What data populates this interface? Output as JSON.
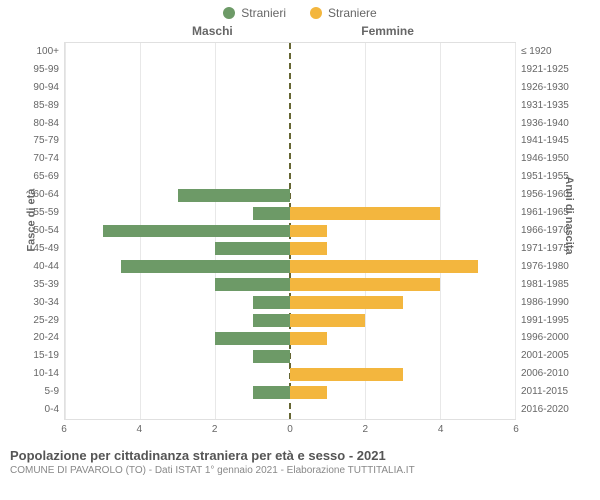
{
  "legend": {
    "male": {
      "label": "Stranieri",
      "color": "#6d9a67"
    },
    "female": {
      "label": "Straniere",
      "color": "#f3b63e"
    }
  },
  "headers": {
    "male_col": "Maschi",
    "female_col": "Femmine"
  },
  "axis_titles": {
    "left": "Fasce di età",
    "right": "Anni di nascita"
  },
  "chart": {
    "xlim": 6,
    "xticks": [
      6,
      4,
      2,
      0,
      2,
      4,
      6
    ],
    "grid_color": "#e8e8e8",
    "center_dash_color": "#666633",
    "background": "#ffffff",
    "rows": [
      {
        "age": "0-4",
        "birth": "2016-2020",
        "male": 0,
        "female": 0
      },
      {
        "age": "5-9",
        "birth": "2011-2015",
        "male": 1,
        "female": 1
      },
      {
        "age": "10-14",
        "birth": "2006-2010",
        "male": 0,
        "female": 3
      },
      {
        "age": "15-19",
        "birth": "2001-2005",
        "male": 1,
        "female": 0
      },
      {
        "age": "20-24",
        "birth": "1996-2000",
        "male": 2,
        "female": 1
      },
      {
        "age": "25-29",
        "birth": "1991-1995",
        "male": 1,
        "female": 2
      },
      {
        "age": "30-34",
        "birth": "1986-1990",
        "male": 1,
        "female": 3
      },
      {
        "age": "35-39",
        "birth": "1981-1985",
        "male": 2,
        "female": 4
      },
      {
        "age": "40-44",
        "birth": "1976-1980",
        "male": 4.5,
        "female": 5
      },
      {
        "age": "45-49",
        "birth": "1971-1975",
        "male": 2,
        "female": 1
      },
      {
        "age": "50-54",
        "birth": "1966-1970",
        "male": 5,
        "female": 1
      },
      {
        "age": "55-59",
        "birth": "1961-1965",
        "male": 1,
        "female": 4
      },
      {
        "age": "60-64",
        "birth": "1956-1960",
        "male": 3,
        "female": 0
      },
      {
        "age": "65-69",
        "birth": "1951-1955",
        "male": 0,
        "female": 0
      },
      {
        "age": "70-74",
        "birth": "1946-1950",
        "male": 0,
        "female": 0
      },
      {
        "age": "75-79",
        "birth": "1941-1945",
        "male": 0,
        "female": 0
      },
      {
        "age": "80-84",
        "birth": "1936-1940",
        "male": 0,
        "female": 0
      },
      {
        "age": "85-89",
        "birth": "1931-1935",
        "male": 0,
        "female": 0
      },
      {
        "age": "90-94",
        "birth": "1926-1930",
        "male": 0,
        "female": 0
      },
      {
        "age": "95-99",
        "birth": "1921-1925",
        "male": 0,
        "female": 0
      },
      {
        "age": "100+",
        "birth": "≤ 1920",
        "male": 0,
        "female": 0
      }
    ]
  },
  "footer": {
    "title": "Popolazione per cittadinanza straniera per età e sesso - 2021",
    "subtitle": "COMUNE DI PAVAROLO (TO) - Dati ISTAT 1° gennaio 2021 - Elaborazione TUTTITALIA.IT"
  }
}
